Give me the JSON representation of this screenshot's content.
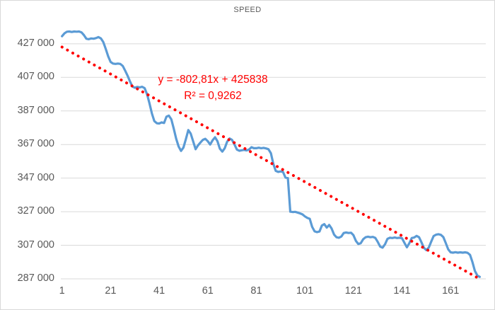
{
  "window": {
    "background": "#ffffff",
    "border_color": "#d9d9d9"
  },
  "chart_data": {
    "type": "line",
    "title": "SPEED",
    "xlabel": "",
    "ylabel": "",
    "grid": true,
    "legend": "none",
    "gridline_color": "#d9d9d9",
    "axis_text_color": "#595959",
    "title_color": "#595959",
    "xlim": [
      0.5,
      175.5
    ],
    "ylim": [
      287000,
      440000
    ],
    "x_ticks": [
      {
        "label": "1",
        "value": 1
      },
      {
        "label": "21",
        "value": 21
      },
      {
        "label": "41",
        "value": 41
      },
      {
        "label": "61",
        "value": 61
      },
      {
        "label": "81",
        "value": 81
      },
      {
        "label": "101",
        "value": 101
      },
      {
        "label": "121",
        "value": 121
      },
      {
        "label": "141",
        "value": 141
      },
      {
        "label": "161",
        "value": 161
      }
    ],
    "y_ticks": [
      {
        "label": "427 000",
        "value": 427000
      },
      {
        "label": "407 000",
        "value": 407000
      },
      {
        "label": "387 000",
        "value": 387000
      },
      {
        "label": "367 000",
        "value": 367000
      },
      {
        "label": "347 000",
        "value": 347000
      },
      {
        "label": "327 000",
        "value": 327000
      },
      {
        "label": "307 000",
        "value": 307000
      },
      {
        "label": "287 000",
        "value": 287000
      }
    ],
    "series": [
      {
        "name": "SPEED",
        "color": "#5b9bd5",
        "line_width": 3.2,
        "x_start": 1,
        "values": [
          431500,
          433200,
          434200,
          434300,
          434000,
          434300,
          434200,
          434300,
          433800,
          432200,
          430000,
          429700,
          430200,
          430000,
          430400,
          431000,
          430200,
          428000,
          424000,
          419500,
          416200,
          415200,
          415000,
          415200,
          415000,
          413800,
          411000,
          408000,
          404500,
          401500,
          400800,
          401300,
          401000,
          401400,
          400600,
          397000,
          391500,
          385500,
          381000,
          379700,
          379500,
          380200,
          379800,
          383600,
          384200,
          382000,
          376500,
          370500,
          365800,
          363200,
          365200,
          370300,
          375600,
          373500,
          368800,
          364200,
          366500,
          368200,
          369800,
          370400,
          369000,
          367000,
          369500,
          371300,
          369000,
          364500,
          362800,
          364800,
          368700,
          370600,
          369800,
          367000,
          364000,
          363300,
          363600,
          363800,
          363500,
          364000,
          365400,
          364800,
          364800,
          365100,
          364800,
          365000,
          364700,
          364200,
          361800,
          355500,
          351300,
          350700,
          351000,
          350700,
          347300,
          347000,
          327000,
          326800,
          326900,
          326500,
          326000,
          325400,
          324200,
          323300,
          322800,
          318000,
          315300,
          314800,
          315200,
          318800,
          319600,
          317500,
          319100,
          317000,
          313400,
          311800,
          311500,
          312200,
          314300,
          314600,
          314300,
          314500,
          313000,
          309600,
          307800,
          308200,
          310600,
          311800,
          312100,
          311800,
          312000,
          311400,
          309000,
          306200,
          305600,
          307600,
          310800,
          311500,
          311300,
          311600,
          311300,
          311500,
          311200,
          308400,
          305800,
          308200,
          311300,
          311600,
          312600,
          311800,
          308800,
          305500,
          304100,
          305600,
          309100,
          312500,
          313300,
          313600,
          313200,
          311900,
          308400,
          304600,
          302800,
          302600,
          302900,
          302600,
          302800,
          302600,
          302800,
          302500,
          301300,
          297000,
          291800,
          289000,
          288200
        ]
      }
    ],
    "trendline": {
      "type": "linear",
      "slope": -802.81,
      "intercept": 425838,
      "r_squared": 0.9262,
      "color": "#ff0000",
      "style": "dotted",
      "equation_label": "y = -802,81x + 425838",
      "r2_label": "R² = 0,9262"
    }
  }
}
